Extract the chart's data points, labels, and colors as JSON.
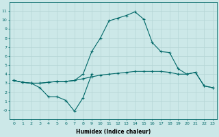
{
  "xlabel": "Humidex (Indice chaleur)",
  "x": [
    0,
    1,
    2,
    3,
    4,
    5,
    6,
    7,
    8,
    9,
    10,
    11,
    12,
    13,
    14,
    15,
    16,
    17,
    18,
    19,
    20,
    21,
    22,
    23
  ],
  "line1": [
    3.3,
    3.1,
    3.0,
    2.5,
    1.5,
    1.5,
    1.1,
    -0.1,
    1.4,
    4.0,
    null,
    null,
    null,
    null,
    null,
    null,
    null,
    null,
    null,
    null,
    null,
    null,
    null,
    null
  ],
  "line2": [
    3.3,
    3.1,
    3.0,
    3.0,
    3.1,
    3.2,
    3.2,
    3.3,
    3.5,
    3.7,
    3.9,
    4.0,
    4.1,
    4.2,
    4.3,
    4.3,
    4.3,
    4.3,
    4.2,
    4.0,
    4.0,
    4.2,
    2.7,
    2.5
  ],
  "line3": [
    3.3,
    3.1,
    3.0,
    3.0,
    3.1,
    3.2,
    3.2,
    3.3,
    4.0,
    6.5,
    8.0,
    9.9,
    10.2,
    10.5,
    10.9,
    10.1,
    7.5,
    6.5,
    6.4,
    4.6,
    4.0,
    4.2,
    2.7,
    2.5
  ],
  "bg_color": "#cce8e8",
  "grid_color": "#b5d5d5",
  "line_color": "#006868",
  "ylim": [
    -1,
    12
  ],
  "xlim": [
    -0.5,
    23.5
  ],
  "yticks": [
    0,
    1,
    2,
    3,
    4,
    5,
    6,
    7,
    8,
    9,
    10,
    11
  ],
  "ytick_labels": [
    "-0",
    "1",
    "2",
    "3",
    "4",
    "5",
    "6",
    "7",
    "8",
    "9",
    "10",
    "11"
  ],
  "xticks": [
    0,
    1,
    2,
    3,
    4,
    5,
    6,
    7,
    8,
    9,
    10,
    11,
    12,
    13,
    14,
    15,
    16,
    17,
    18,
    19,
    20,
    21,
    22,
    23
  ],
  "xtick_labels": [
    "0",
    "1",
    "2",
    "3",
    "4",
    "5",
    "6",
    "7",
    "8",
    "9",
    "10",
    "11",
    "12",
    "13",
    "14",
    "15",
    "16",
    "17",
    "18",
    "19",
    "20",
    "21",
    "22",
    "23"
  ]
}
